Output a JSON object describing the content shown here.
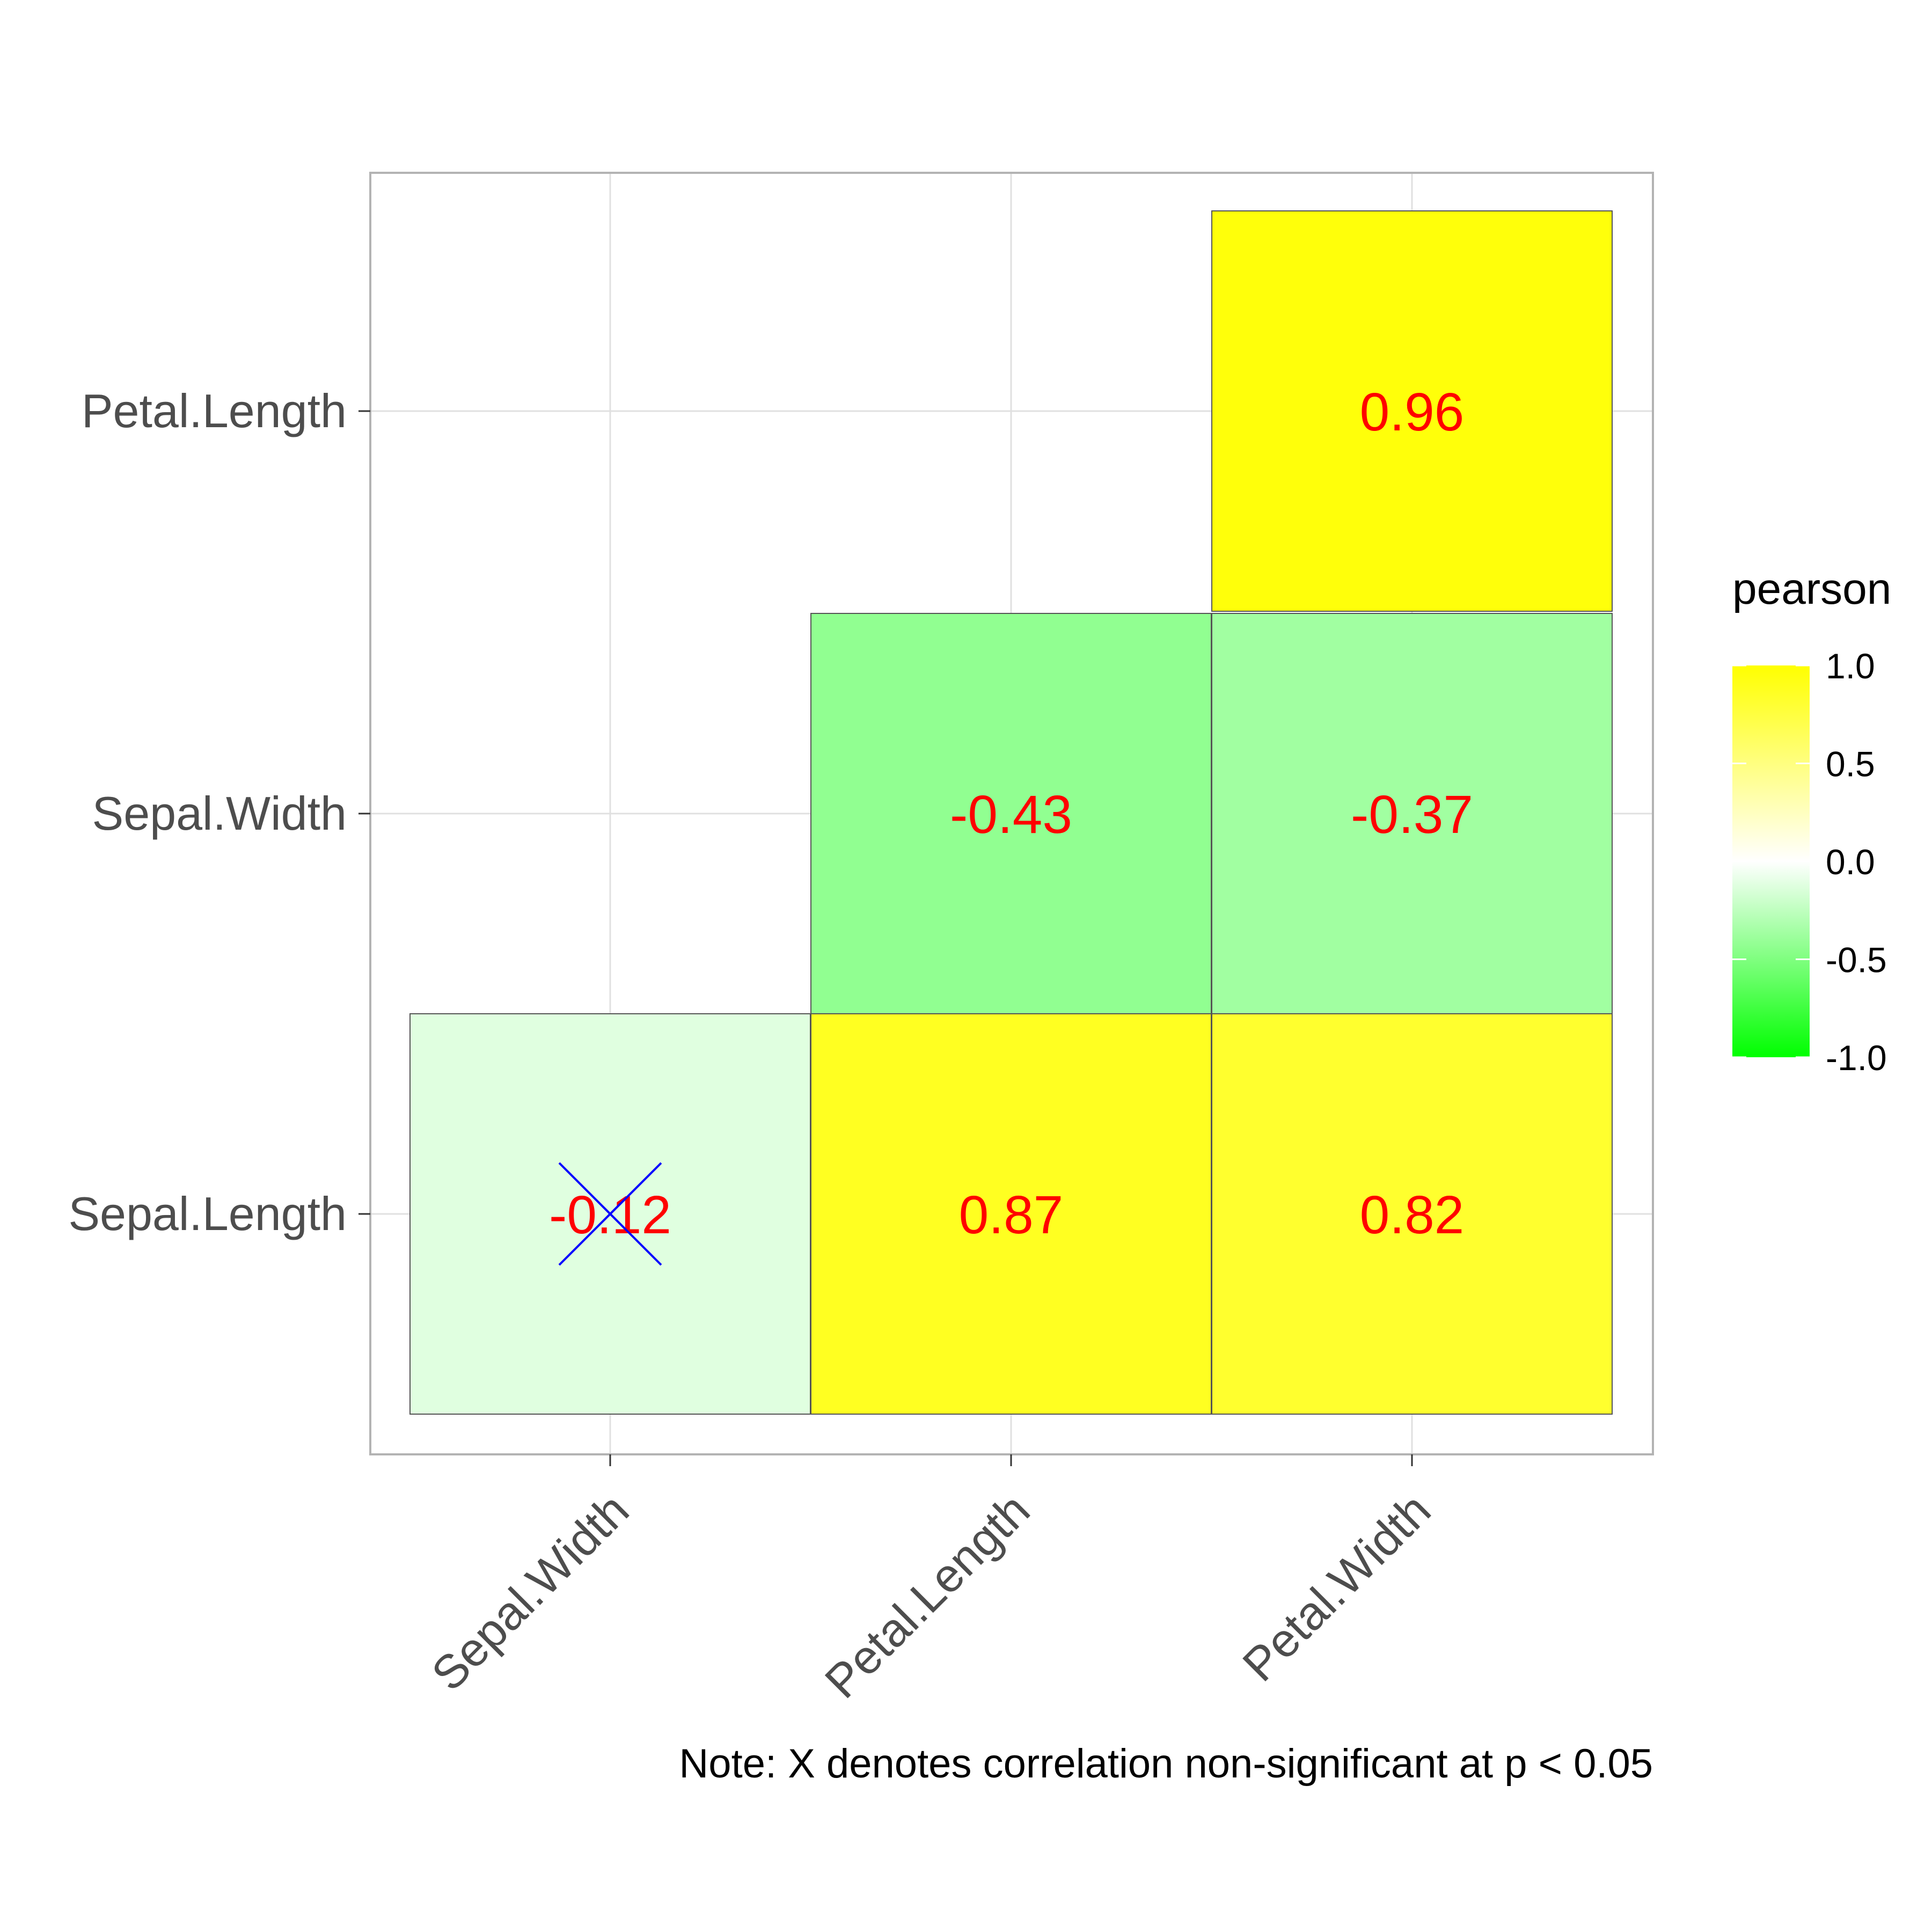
{
  "chart_data": {
    "type": "heatmap",
    "x_categories": [
      "Sepal.Width",
      "Petal.Length",
      "Petal.Width"
    ],
    "y_categories": [
      "Sepal.Length",
      "Sepal.Width",
      "Petal.Length"
    ],
    "cells": [
      {
        "x": "Sepal.Width",
        "y": "Sepal.Length",
        "value": -0.12,
        "label": "-0.12",
        "non_significant": true
      },
      {
        "x": "Petal.Length",
        "y": "Sepal.Length",
        "value": 0.87,
        "label": "0.87",
        "non_significant": false
      },
      {
        "x": "Petal.Width",
        "y": "Sepal.Length",
        "value": 0.82,
        "label": "0.82",
        "non_significant": false
      },
      {
        "x": "Petal.Length",
        "y": "Sepal.Width",
        "value": -0.43,
        "label": "-0.43",
        "non_significant": false
      },
      {
        "x": "Petal.Width",
        "y": "Sepal.Width",
        "value": -0.37,
        "label": "-0.37",
        "non_significant": false
      },
      {
        "x": "Petal.Width",
        "y": "Petal.Length",
        "value": 0.96,
        "label": "0.96",
        "non_significant": false
      }
    ],
    "legend": {
      "title": "pearson",
      "range": [
        -1,
        1
      ],
      "ticks": [
        "1.0",
        "0.5",
        "0.0",
        "-0.5",
        "-1.0"
      ],
      "colors": {
        "low": "#00ff00",
        "mid": "#ffffff",
        "high": "#ffff00"
      },
      "placement": "right"
    },
    "grid": true,
    "note": "Note: X denotes correlation non-significant at p < 0.05",
    "colors": {
      "cell_label": "#ff0000",
      "cross": "#0000ff"
    }
  }
}
